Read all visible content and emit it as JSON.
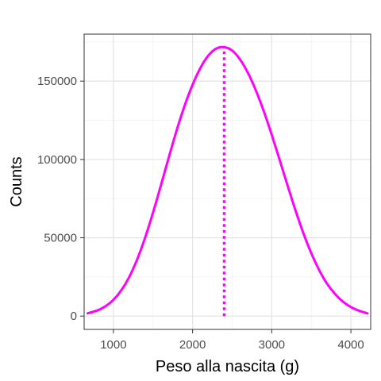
{
  "chart_data": {
    "type": "line",
    "title": "",
    "xlabel": "Peso alla nascita (g)",
    "ylabel": "Counts",
    "xlim": [
      630,
      4250
    ],
    "ylim": [
      -8500,
      180000
    ],
    "x_ticks": [
      1000,
      2000,
      3000,
      4000
    ],
    "x_tick_labels": [
      "1000",
      "2000",
      "3000",
      "4000"
    ],
    "y_ticks": [
      0,
      50000,
      100000,
      150000
    ],
    "y_tick_labels": [
      "0",
      "50000",
      "100000",
      "150000"
    ],
    "grid": true,
    "legend": "none",
    "series": [
      {
        "x": [
          675,
          800,
          900,
          1000,
          1100,
          1200,
          1300,
          1400,
          1500,
          1600,
          1700,
          1800,
          1900,
          2000,
          2100,
          2200,
          2300,
          2400,
          2500,
          2600,
          2700,
          2800,
          2900,
          3000,
          3100,
          3200,
          3300,
          3400,
          3500,
          3600,
          3700,
          3800,
          3900,
          4000,
          4100,
          4210
        ],
        "values": [
          1800,
          3700,
          6300,
          10400,
          16500,
          25000,
          36200,
          50000,
          66000,
          83500,
          101400,
          118800,
          134400,
          147700,
          158500,
          166400,
          170800,
          171700,
          169500,
          163800,
          155200,
          144000,
          130700,
          115700,
          99700,
          83400,
          67500,
          52900,
          40100,
          29300,
          20600,
          14100,
          9200,
          5800,
          3500,
          1700
        ],
        "color": "#ff00ff"
      }
    ],
    "reference_line": {
      "x": 2400,
      "style": "dotted",
      "color": "#ff00ff"
    },
    "colors": {
      "line": "#ff00ff",
      "grid_major": "#e5e5e5",
      "grid_minor": "#f2f2f2",
      "panel_border": "#333333",
      "tick_text": "#4d4d4d"
    }
  }
}
